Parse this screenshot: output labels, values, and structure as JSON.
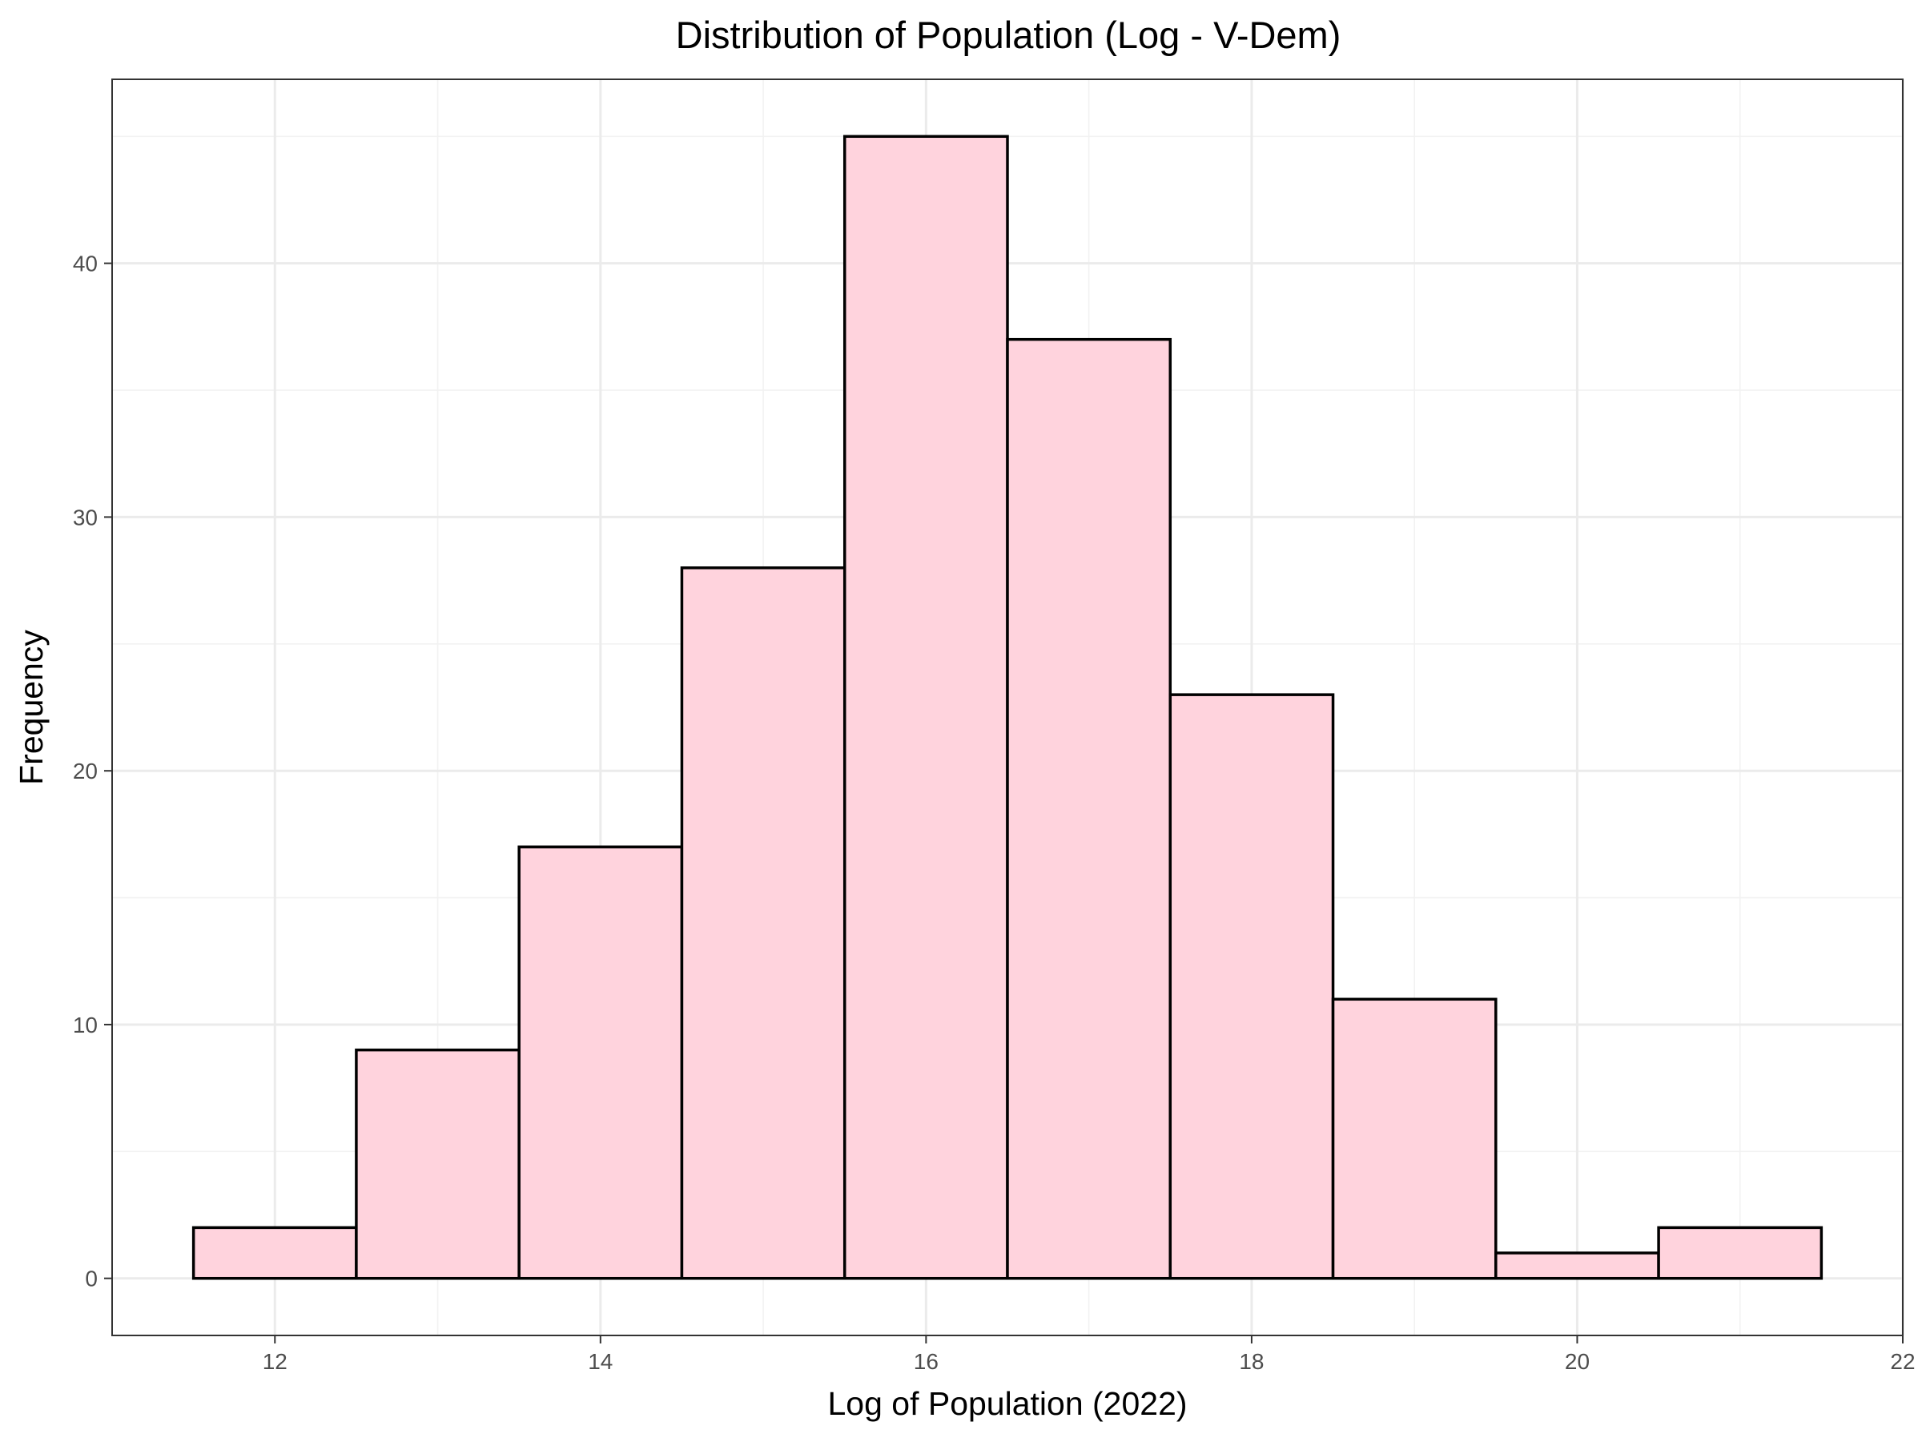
{
  "chart_data": {
    "type": "bar",
    "title": "Distribution of Population (Log - V-Dem)",
    "xlabel": "Log of Population (2022)",
    "ylabel": "Frequency",
    "bin_width": 1,
    "bins": [
      {
        "start": 11.5,
        "end": 12.5,
        "count": 2
      },
      {
        "start": 12.5,
        "end": 13.5,
        "count": 9
      },
      {
        "start": 13.5,
        "end": 14.5,
        "count": 17
      },
      {
        "start": 14.5,
        "end": 15.5,
        "count": 28
      },
      {
        "start": 15.5,
        "end": 16.5,
        "count": 45
      },
      {
        "start": 16.5,
        "end": 17.5,
        "count": 37
      },
      {
        "start": 17.5,
        "end": 18.5,
        "count": 23
      },
      {
        "start": 18.5,
        "end": 19.5,
        "count": 11
      },
      {
        "start": 19.5,
        "end": 20.5,
        "count": 1
      },
      {
        "start": 20.5,
        "end": 21.5,
        "count": 2
      }
    ],
    "xlim": [
      11,
      22
    ],
    "ylim": [
      -2.25,
      47.25
    ],
    "x_ticks": [
      12,
      14,
      16,
      18,
      20,
      22
    ],
    "y_ticks": [
      0,
      10,
      20,
      30,
      40
    ],
    "grid": true,
    "bar_fill": "#ffd3dd",
    "bar_outline": "#000000"
  }
}
